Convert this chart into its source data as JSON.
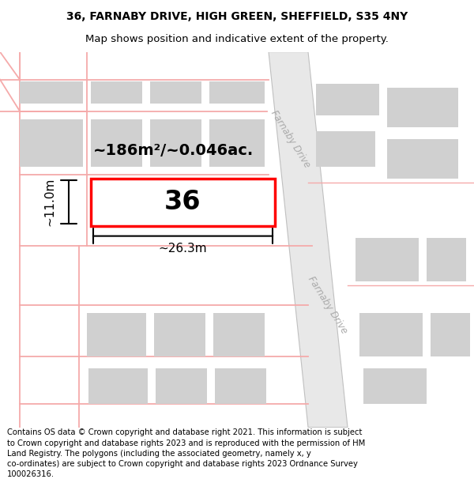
{
  "title_line1": "36, FARNABY DRIVE, HIGH GREEN, SHEFFIELD, S35 4NY",
  "title_line2": "Map shows position and indicative extent of the property.",
  "footer_text": "Contains OS data © Crown copyright and database right 2021. This information is subject to Crown copyright and database rights 2023 and is reproduced with the permission of HM Land Registry. The polygons (including the associated geometry, namely x, y co-ordinates) are subject to Crown copyright and database rights 2023 Ordnance Survey 100026316.",
  "bg_color": "#ffffff",
  "map_bg": "#f0f0ee",
  "road_color_light": "#f5aaaa",
  "road_fill": "#e8e8e8",
  "building_color": "#d0d0d0",
  "highlight_color": "#ff0000",
  "highlight_fill": "#ffffff",
  "text_color": "#000000",
  "label_number": "36",
  "area_text": "~186m²/~0.046ac.",
  "width_text": "~26.3m",
  "height_text": "~11.0m",
  "road_label_upper": "Farnaby Drive",
  "road_label_lower": "Farnaby Drive",
  "title_fontsize": 10,
  "footer_fontsize": 7.2
}
